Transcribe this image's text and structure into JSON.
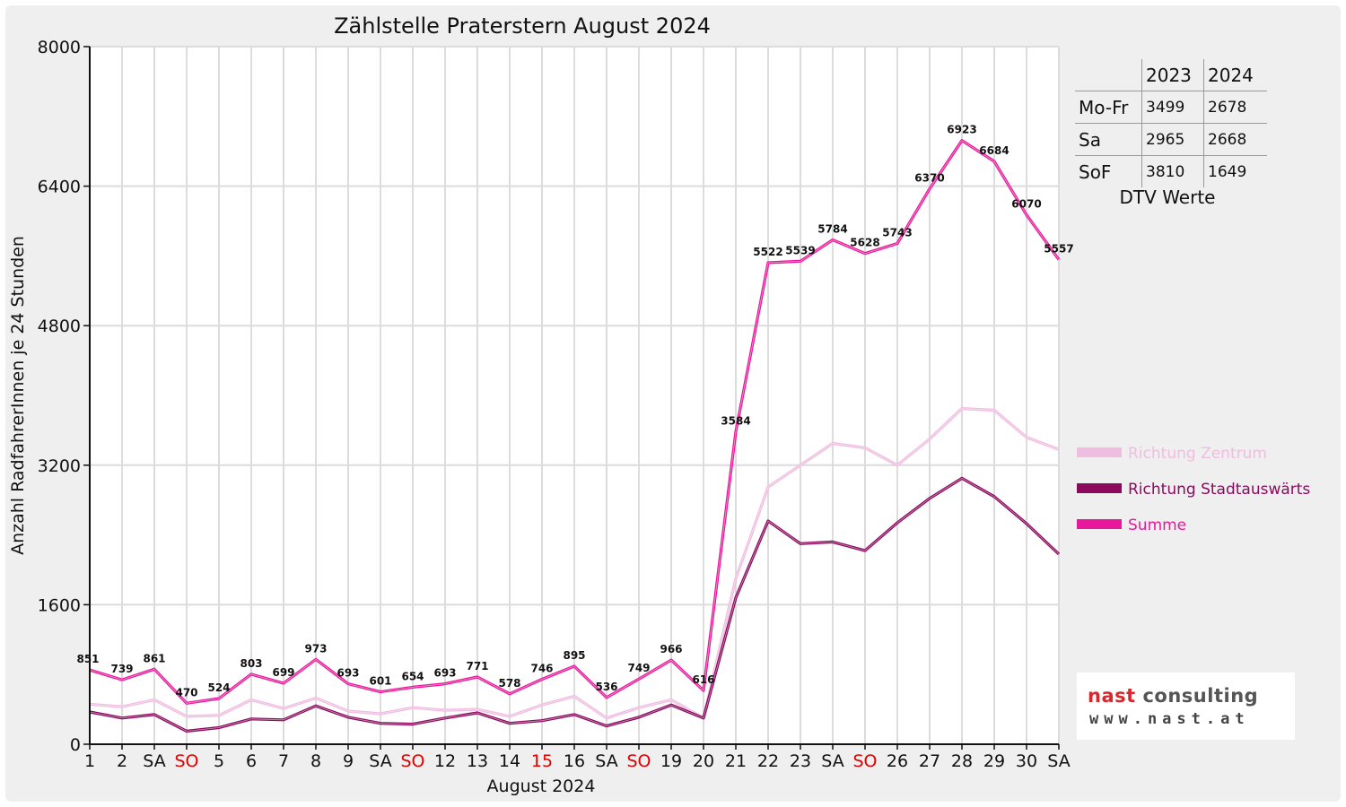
{
  "chart_data": {
    "type": "line",
    "title": "Zählstelle Praterstern August 2024",
    "xlabel": "August 2024",
    "ylabel": "Anzahl RadfahrerInnen je 24 Stunden",
    "ylim": [
      0,
      8000
    ],
    "yticks": [
      "0",
      "1600",
      "3200",
      "4800",
      "6400",
      "8000"
    ],
    "grid": true,
    "legend_position": "right",
    "categories": [
      "1",
      "2",
      "SA",
      "SO",
      "5",
      "6",
      "7",
      "8",
      "9",
      "SA",
      "SO",
      "12",
      "13",
      "14",
      "15",
      "16",
      "SA",
      "SO",
      "19",
      "20",
      "21",
      "22",
      "23",
      "SA",
      "SO",
      "26",
      "27",
      "28",
      "29",
      "30",
      "SA"
    ],
    "highlighted_categories": [
      3,
      10,
      14,
      17,
      24
    ],
    "series": [
      {
        "name": "Richtung Zentrum",
        "color": "#f0bce0",
        "values": [
          460,
          430,
          510,
          320,
          330,
          510,
          410,
          530,
          380,
          350,
          420,
          390,
          400,
          320,
          450,
          550,
          300,
          420,
          510,
          300,
          1900,
          2950,
          3200,
          3450,
          3400,
          3200,
          3500,
          3850,
          3830,
          3520,
          3380
        ]
      },
      {
        "name": "Richtung Stadtauswärts",
        "color": "#8b0a5e",
        "values": [
          370,
          300,
          340,
          150,
          190,
          290,
          280,
          440,
          310,
          240,
          230,
          300,
          360,
          240,
          270,
          340,
          210,
          310,
          450,
          300,
          1680,
          2560,
          2300,
          2320,
          2220,
          2540,
          2820,
          3050,
          2840,
          2530,
          2180
        ]
      },
      {
        "name": "Summe",
        "color": "#e8189a",
        "values": [
          851,
          739,
          861,
          470,
          524,
          803,
          699,
          973,
          693,
          601,
          654,
          693,
          771,
          578,
          746,
          895,
          536,
          749,
          966,
          616,
          3584,
          5522,
          5539,
          5784,
          5628,
          5743,
          6370,
          6923,
          6684,
          6070,
          5557
        ],
        "labels": [
          "851",
          "739",
          "861",
          "470",
          "524",
          "803",
          "699",
          "973",
          "693",
          "601",
          "654",
          "693",
          "771",
          "578",
          "746",
          "895",
          "536",
          "749",
          "966",
          "616",
          "3584",
          "5522",
          "5539",
          "5784",
          "5628",
          "5743",
          "6370",
          "6923",
          "6684",
          "6070",
          "5557"
        ]
      }
    ]
  },
  "dtv_table": {
    "caption": "DTV Werte",
    "headers": [
      "2023",
      "2024"
    ],
    "rows": [
      {
        "label": "Mo-Fr",
        "v2023": "3499",
        "v2024": "2678"
      },
      {
        "label": "Sa",
        "v2023": "2965",
        "v2024": "2668"
      },
      {
        "label": "SoF",
        "v2023": "3810",
        "v2024": "1649"
      }
    ]
  },
  "logo": {
    "name_part1": "nast",
    "name_part2": "consulting",
    "url": "www.nast.at",
    "colors": {
      "nast": "#d9272e",
      "consulting": "#555555"
    }
  }
}
